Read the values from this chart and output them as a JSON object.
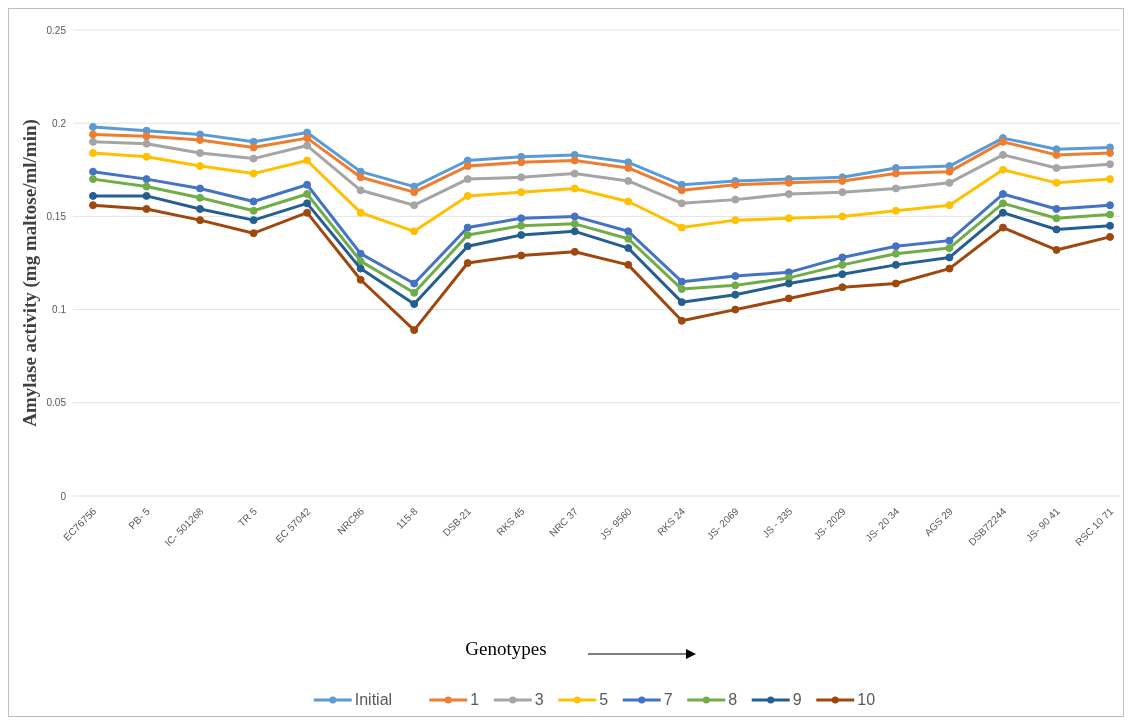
{
  "chart_data": {
    "type": "line",
    "xlabel": "Genotypes",
    "ylabel": "Amylase activity (mg maltose/ml/min)",
    "categories": [
      "EC76756",
      "PB- 5",
      "IC- 501268",
      "TR 5",
      "EC 57042",
      "NRC86",
      "115-8",
      "DSB-21",
      "RKS 45",
      "NRC 37",
      "JS- 9560",
      "RKS 24",
      "JS- 2069",
      "JS - 335",
      "JS- 2029",
      "JS- 20 34",
      "AGS 29",
      "DSB72244",
      "JS- 90 41",
      "RSC 10 71"
    ],
    "ylim": [
      0,
      0.25
    ],
    "yticks": [
      0,
      0.05,
      0.1,
      0.15,
      0.2,
      0.25
    ],
    "grid": "y",
    "legend": "bottom",
    "marker": "circle",
    "line_style": "solid",
    "series": [
      {
        "name": "Initial",
        "color": "#5b9bd5",
        "values": [
          0.198,
          0.196,
          0.194,
          0.19,
          0.195,
          0.174,
          0.166,
          0.18,
          0.182,
          0.183,
          0.179,
          0.167,
          0.169,
          0.17,
          0.171,
          0.176,
          0.177,
          0.192,
          0.186,
          0.187
        ]
      },
      {
        "name": "1",
        "color": "#ed7d31",
        "values": [
          0.194,
          0.193,
          0.191,
          0.187,
          0.192,
          0.171,
          0.163,
          0.177,
          0.179,
          0.18,
          0.176,
          0.164,
          0.167,
          0.168,
          0.169,
          0.173,
          0.174,
          0.19,
          0.183,
          0.184
        ]
      },
      {
        "name": "3",
        "color": "#a5a5a5",
        "values": [
          0.19,
          0.189,
          0.184,
          0.181,
          0.188,
          0.164,
          0.156,
          0.17,
          0.171,
          0.173,
          0.169,
          0.157,
          0.159,
          0.162,
          0.163,
          0.165,
          0.168,
          0.183,
          0.176,
          0.178
        ]
      },
      {
        "name": "5",
        "color": "#ffc000",
        "values": [
          0.184,
          0.182,
          0.177,
          0.173,
          0.18,
          0.152,
          0.142,
          0.161,
          0.163,
          0.165,
          0.158,
          0.144,
          0.148,
          0.149,
          0.15,
          0.153,
          0.156,
          0.175,
          0.168,
          0.17
        ]
      },
      {
        "name": "7",
        "color": "#4472c4",
        "values": [
          0.174,
          0.17,
          0.165,
          0.158,
          0.167,
          0.13,
          0.114,
          0.144,
          0.149,
          0.15,
          0.142,
          0.115,
          0.118,
          0.12,
          0.128,
          0.134,
          0.137,
          0.162,
          0.154,
          0.156
        ]
      },
      {
        "name": "8",
        "color": "#70ad47",
        "values": [
          0.17,
          0.166,
          0.16,
          0.153,
          0.162,
          0.126,
          0.109,
          0.14,
          0.145,
          0.146,
          0.138,
          0.111,
          0.113,
          0.117,
          0.124,
          0.13,
          0.133,
          0.157,
          0.149,
          0.151
        ]
      },
      {
        "name": "9",
        "color": "#255e91",
        "values": [
          0.161,
          0.161,
          0.154,
          0.148,
          0.157,
          0.122,
          0.103,
          0.134,
          0.14,
          0.142,
          0.133,
          0.104,
          0.108,
          0.114,
          0.119,
          0.124,
          0.128,
          0.152,
          0.143,
          0.145
        ]
      },
      {
        "name": "10",
        "color": "#9e480e",
        "values": [
          0.156,
          0.154,
          0.148,
          0.141,
          0.152,
          0.116,
          0.089,
          0.125,
          0.129,
          0.131,
          0.124,
          0.094,
          0.1,
          0.106,
          0.112,
          0.114,
          0.122,
          0.144,
          0.132,
          0.139
        ]
      }
    ]
  }
}
